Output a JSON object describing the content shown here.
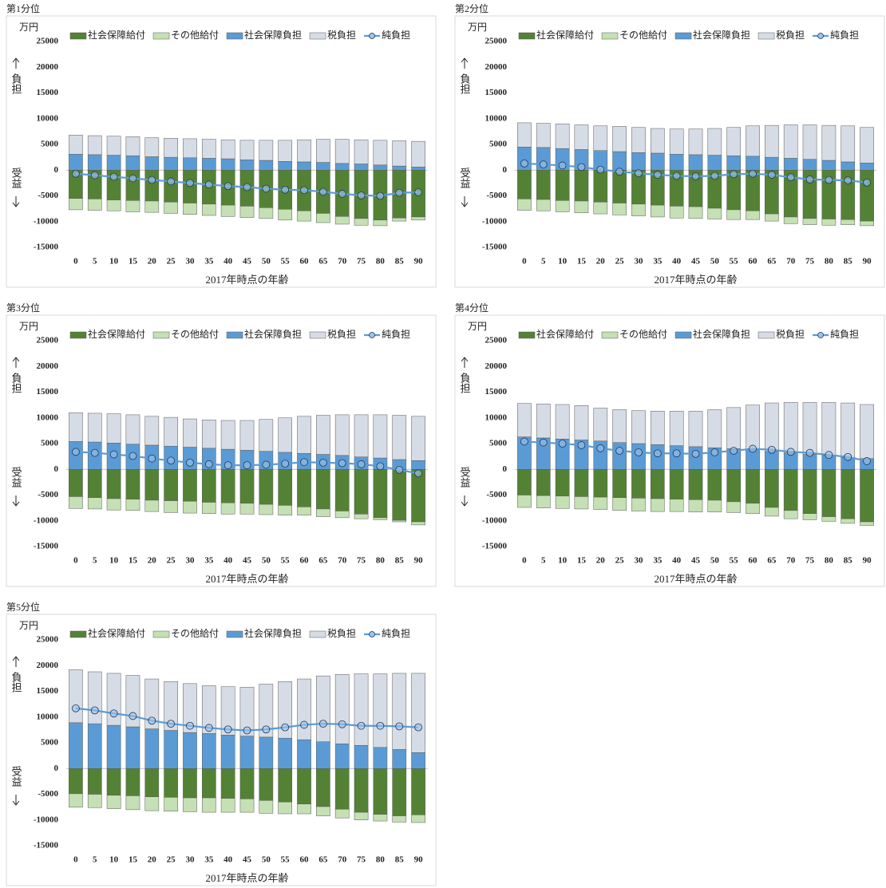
{
  "chart_data": [
    {
      "type": "combo",
      "title": "第1分位",
      "y_unit": "万円",
      "upper_label": "負担",
      "lower_label": "受益",
      "x_label": "2017年時点の年齢",
      "categories": [
        0,
        5,
        10,
        15,
        20,
        25,
        30,
        35,
        40,
        45,
        50,
        55,
        60,
        65,
        70,
        75,
        80,
        85,
        90
      ],
      "ylim": [
        -15000,
        25000
      ],
      "yticks": [
        -15000,
        -10000,
        -5000,
        0,
        5000,
        10000,
        15000,
        20000,
        25000
      ],
      "series": [
        {
          "name": "社会保障給付",
          "kind": "bar",
          "color": "#548235",
          "values": [
            -5500,
            -5600,
            -5800,
            -5900,
            -6000,
            -6200,
            -6400,
            -6600,
            -6800,
            -7000,
            -7300,
            -7600,
            -7900,
            -8400,
            -9000,
            -9400,
            -9700,
            -9300,
            -9100
          ]
        },
        {
          "name": "その他給付",
          "kind": "bar",
          "color": "#c5e0b4",
          "values": [
            -2200,
            -2200,
            -2100,
            -2200,
            -2200,
            -2200,
            -2200,
            -2200,
            -2200,
            -2200,
            -2100,
            -2100,
            -2000,
            -1800,
            -1500,
            -1300,
            -1100,
            -600,
            -600
          ]
        },
        {
          "name": "社会保障負担",
          "kind": "bar",
          "color": "#5b9bd5",
          "values": [
            3100,
            3000,
            2900,
            2800,
            2600,
            2500,
            2400,
            2300,
            2200,
            2000,
            1900,
            1700,
            1600,
            1500,
            1300,
            1200,
            1000,
            800,
            600
          ]
        },
        {
          "name": "税負担",
          "kind": "bar",
          "color": "#d6dce5",
          "values": [
            3700,
            3700,
            3700,
            3700,
            3700,
            3700,
            3700,
            3700,
            3700,
            3800,
            3900,
            4100,
            4300,
            4500,
            4700,
            4700,
            4800,
            4900,
            5000
          ]
        },
        {
          "name": "純負担",
          "kind": "line",
          "color": "#5b9bd5",
          "values": [
            -700,
            -1000,
            -1300,
            -1600,
            -1900,
            -2200,
            -2500,
            -2800,
            -3100,
            -3300,
            -3600,
            -3800,
            -3900,
            -4200,
            -4600,
            -4900,
            -5000,
            -4400,
            -4300
          ]
        }
      ]
    },
    {
      "type": "combo",
      "title": "第2分位",
      "y_unit": "万円",
      "upper_label": "負担",
      "lower_label": "受益",
      "x_label": "2017年時点の年齢",
      "categories": [
        0,
        5,
        10,
        15,
        20,
        25,
        30,
        35,
        40,
        45,
        50,
        55,
        60,
        65,
        70,
        75,
        80,
        85,
        90
      ],
      "ylim": [
        -15000,
        25000
      ],
      "yticks": [
        -15000,
        -10000,
        -5000,
        0,
        5000,
        10000,
        15000,
        20000,
        25000
      ],
      "series": [
        {
          "name": "社会保障給付",
          "kind": "bar",
          "color": "#548235",
          "values": [
            -5600,
            -5700,
            -5900,
            -6000,
            -6200,
            -6400,
            -6600,
            -6800,
            -7000,
            -7100,
            -7400,
            -7700,
            -7900,
            -8500,
            -9100,
            -9400,
            -9500,
            -9600,
            -9900
          ]
        },
        {
          "name": "その他給付",
          "kind": "bar",
          "color": "#c5e0b4",
          "values": [
            -2200,
            -2200,
            -2200,
            -2300,
            -2300,
            -2300,
            -2300,
            -2300,
            -2300,
            -2300,
            -2100,
            -1900,
            -1700,
            -1400,
            -1300,
            -1200,
            -1200,
            -1000,
            -900
          ]
        },
        {
          "name": "社会保障負担",
          "kind": "bar",
          "color": "#5b9bd5",
          "values": [
            4500,
            4400,
            4200,
            4000,
            3800,
            3600,
            3400,
            3300,
            3100,
            3000,
            2900,
            2800,
            2700,
            2500,
            2300,
            2100,
            1900,
            1600,
            1400
          ]
        },
        {
          "name": "税負担",
          "kind": "bar",
          "color": "#d6dce5",
          "values": [
            4700,
            4700,
            4800,
            4800,
            4800,
            4900,
            4900,
            4800,
            4900,
            5000,
            5200,
            5500,
            5900,
            6200,
            6500,
            6700,
            6800,
            7000,
            6900
          ]
        },
        {
          "name": "純負担",
          "kind": "line",
          "color": "#5b9bd5",
          "values": [
            1300,
            1100,
            900,
            600,
            100,
            -300,
            -600,
            -900,
            -1100,
            -1200,
            -1100,
            -800,
            -700,
            -900,
            -1400,
            -1800,
            -1900,
            -2000,
            -2400
          ]
        }
      ]
    },
    {
      "type": "combo",
      "title": "第3分位",
      "y_unit": "万円",
      "upper_label": "負担",
      "lower_label": "受益",
      "x_label": "2017年時点の年齢",
      "categories": [
        0,
        5,
        10,
        15,
        20,
        25,
        30,
        35,
        40,
        45,
        50,
        55,
        60,
        65,
        70,
        75,
        80,
        85,
        90
      ],
      "ylim": [
        -15000,
        25000
      ],
      "yticks": [
        -15000,
        -10000,
        -5000,
        0,
        5000,
        10000,
        15000,
        20000,
        25000
      ],
      "series": [
        {
          "name": "社会保障給付",
          "kind": "bar",
          "color": "#548235",
          "values": [
            -5300,
            -5500,
            -5700,
            -5800,
            -6000,
            -6100,
            -6200,
            -6400,
            -6500,
            -6600,
            -6800,
            -7000,
            -7300,
            -7700,
            -8100,
            -8700,
            -9400,
            -9900,
            -10200
          ]
        },
        {
          "name": "その他給付",
          "kind": "bar",
          "color": "#c5e0b4",
          "values": [
            -2300,
            -2200,
            -2200,
            -2200,
            -2200,
            -2300,
            -2300,
            -2200,
            -2200,
            -2100,
            -2000,
            -1900,
            -1600,
            -1500,
            -1300,
            -900,
            -400,
            -300,
            -600
          ]
        },
        {
          "name": "社会保障負担",
          "kind": "bar",
          "color": "#5b9bd5",
          "values": [
            5400,
            5300,
            5100,
            4900,
            4700,
            4500,
            4300,
            4100,
            3900,
            3700,
            3500,
            3300,
            3100,
            2900,
            2700,
            2400,
            2200,
            1900,
            1700
          ]
        },
        {
          "name": "税負担",
          "kind": "bar",
          "color": "#d6dce5",
          "values": [
            5600,
            5600,
            5700,
            5700,
            5600,
            5600,
            5500,
            5500,
            5600,
            5800,
            6200,
            6700,
            7200,
            7600,
            7900,
            8200,
            8400,
            8600,
            8600
          ]
        },
        {
          "name": "純負担",
          "kind": "line",
          "color": "#5b9bd5",
          "values": [
            3400,
            3200,
            2900,
            2600,
            2100,
            1700,
            1300,
            1000,
            800,
            800,
            900,
            1100,
            1400,
            1300,
            1200,
            1000,
            600,
            -100,
            -800
          ]
        }
      ]
    },
    {
      "type": "combo",
      "title": "第4分位",
      "y_unit": "万円",
      "upper_label": "負担",
      "lower_label": "受益",
      "x_label": "2017年時点の年齢",
      "categories": [
        0,
        5,
        10,
        15,
        20,
        25,
        30,
        35,
        40,
        45,
        50,
        55,
        60,
        65,
        70,
        75,
        80,
        85,
        90
      ],
      "ylim": [
        -15000,
        25000
      ],
      "yticks": [
        -15000,
        -10000,
        -5000,
        0,
        5000,
        10000,
        15000,
        20000,
        25000
      ],
      "series": [
        {
          "name": "社会保障給付",
          "kind": "bar",
          "color": "#548235",
          "values": [
            -5000,
            -5100,
            -5200,
            -5300,
            -5400,
            -5500,
            -5600,
            -5700,
            -5800,
            -5900,
            -6000,
            -6300,
            -6600,
            -7400,
            -8000,
            -8600,
            -9200,
            -9600,
            -10200
          ]
        },
        {
          "name": "その他給付",
          "kind": "bar",
          "color": "#c5e0b4",
          "values": [
            -2400,
            -2400,
            -2400,
            -2400,
            -2400,
            -2500,
            -2500,
            -2500,
            -2400,
            -2400,
            -2300,
            -2100,
            -2000,
            -1700,
            -1600,
            -1200,
            -900,
            -900,
            -700
          ]
        },
        {
          "name": "社会保障負担",
          "kind": "bar",
          "color": "#5b9bd5",
          "values": [
            6300,
            6100,
            5900,
            5700,
            5500,
            5200,
            5000,
            4800,
            4600,
            4400,
            4200,
            4000,
            3800,
            3500,
            3200,
            2900,
            2700,
            2300,
            2100
          ]
        },
        {
          "name": "税負担",
          "kind": "bar",
          "color": "#d6dce5",
          "values": [
            6500,
            6600,
            6700,
            6700,
            6400,
            6400,
            6400,
            6500,
            6700,
            6900,
            7400,
            8000,
            8700,
            9400,
            9800,
            10100,
            10300,
            10600,
            10500
          ]
        },
        {
          "name": "純負担",
          "kind": "line",
          "color": "#5b9bd5",
          "values": [
            5400,
            5200,
            5000,
            4700,
            4100,
            3600,
            3300,
            3100,
            3100,
            3000,
            3300,
            3600,
            4000,
            3800,
            3400,
            3200,
            2800,
            2400,
            1600
          ]
        }
      ]
    },
    {
      "type": "combo",
      "title": "第5分位",
      "y_unit": "万円",
      "upper_label": "負担",
      "lower_label": "受益",
      "x_label": "2017年時点の年齢",
      "categories": [
        0,
        5,
        10,
        15,
        20,
        25,
        30,
        35,
        40,
        45,
        50,
        55,
        60,
        65,
        70,
        75,
        80,
        85,
        90
      ],
      "ylim": [
        -15000,
        25000
      ],
      "yticks": [
        -15000,
        -10000,
        -5000,
        0,
        5000,
        10000,
        15000,
        20000,
        25000
      ],
      "series": [
        {
          "name": "社会保障給付",
          "kind": "bar",
          "color": "#548235",
          "values": [
            -4900,
            -5000,
            -5200,
            -5300,
            -5500,
            -5600,
            -5700,
            -5700,
            -5800,
            -5900,
            -6200,
            -6500,
            -6900,
            -7400,
            -7900,
            -8500,
            -8900,
            -9200,
            -9000
          ]
        },
        {
          "name": "その他給付",
          "kind": "bar",
          "color": "#c5e0b4",
          "values": [
            -2600,
            -2600,
            -2600,
            -2700,
            -2700,
            -2700,
            -2700,
            -2800,
            -2700,
            -2600,
            -2500,
            -2300,
            -1900,
            -1800,
            -1700,
            -1500,
            -1300,
            -1200,
            -1500
          ]
        },
        {
          "name": "社会保障負担",
          "kind": "bar",
          "color": "#5b9bd5",
          "values": [
            8900,
            8700,
            8400,
            8100,
            7700,
            7400,
            7000,
            6800,
            6500,
            6300,
            6100,
            5900,
            5600,
            5200,
            4800,
            4500,
            4100,
            3700,
            3100
          ]
        },
        {
          "name": "税負担",
          "kind": "bar",
          "color": "#d6dce5",
          "values": [
            10300,
            10100,
            10100,
            10000,
            9700,
            9500,
            9500,
            9300,
            9400,
            9500,
            10300,
            11000,
            11800,
            12800,
            13500,
            13900,
            14300,
            14800,
            15400
          ]
        },
        {
          "name": "純負担",
          "kind": "line",
          "color": "#5b9bd5",
          "values": [
            11700,
            11300,
            10700,
            10200,
            9300,
            8700,
            8300,
            7900,
            7600,
            7400,
            7600,
            8000,
            8500,
            8700,
            8600,
            8300,
            8300,
            8200,
            8000
          ]
        }
      ]
    }
  ]
}
